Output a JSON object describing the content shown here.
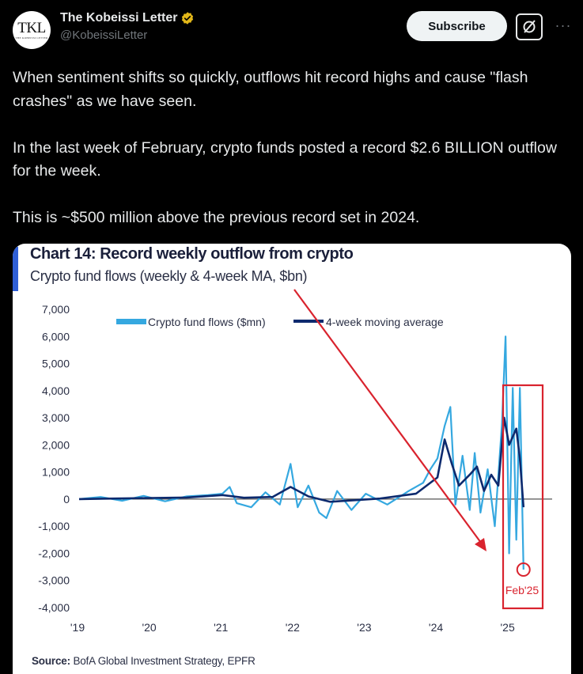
{
  "account": {
    "display_name": "The Kobeissi Letter",
    "handle": "@KobeissiLetter",
    "avatar_text": "TKL",
    "avatar_subtext": "THE KOBEISSI LETTER",
    "verified_color": "#e2b719"
  },
  "actions": {
    "subscribe_label": "Subscribe",
    "more_label": "···"
  },
  "tweet": {
    "paragraphs": [
      "When sentiment shifts so quickly, outflows hit record highs and cause \"flash crashes\" as we have seen.",
      "In the last week of February, crypto funds posted a record $2.6 BILLION outflow for the week.",
      "This is ~$500 million above the previous record set in 2024."
    ]
  },
  "chart_data": {
    "type": "line",
    "title": "Chart 14: Record weekly outflow from crypto",
    "subtitle": "Crypto fund flows (weekly & 4-week MA, $bn)",
    "source_label": "Source:",
    "source_text": "BofA Global Investment Strategy, EPFR",
    "ylim": [
      -4000,
      7000
    ],
    "y_ticks": [
      "7,000",
      "6,000",
      "5,000",
      "4,000",
      "3,000",
      "2,000",
      "1,000",
      "0",
      "-1,000",
      "-2,000",
      "-3,000",
      "-4,000"
    ],
    "x_ticks": [
      "'19",
      "'20",
      "'21",
      "'22",
      "'23",
      "'24",
      "'25"
    ],
    "legend": [
      "Crypto fund flows ($mn)",
      "4-week moving average"
    ],
    "annotation": "Feb'25",
    "colors": {
      "weekly": "#35a8e0",
      "ma": "#0d2a6e",
      "annotation": "#d9232e"
    },
    "series": [
      {
        "name": "Crypto fund flows ($mn)",
        "points": [
          [
            2019.0,
            0
          ],
          [
            2019.3,
            80
          ],
          [
            2019.6,
            -60
          ],
          [
            2019.9,
            120
          ],
          [
            2020.2,
            -80
          ],
          [
            2020.5,
            100
          ],
          [
            2020.8,
            150
          ],
          [
            2021.0,
            200
          ],
          [
            2021.1,
            450
          ],
          [
            2021.2,
            -150
          ],
          [
            2021.4,
            -300
          ],
          [
            2021.6,
            250
          ],
          [
            2021.8,
            -200
          ],
          [
            2021.95,
            1300
          ],
          [
            2022.05,
            -300
          ],
          [
            2022.2,
            500
          ],
          [
            2022.35,
            -500
          ],
          [
            2022.45,
            -700
          ],
          [
            2022.6,
            300
          ],
          [
            2022.8,
            -400
          ],
          [
            2023.0,
            200
          ],
          [
            2023.3,
            -200
          ],
          [
            2023.6,
            300
          ],
          [
            2023.8,
            600
          ],
          [
            2023.9,
            1100
          ],
          [
            2024.0,
            1500
          ],
          [
            2024.1,
            2700
          ],
          [
            2024.18,
            3400
          ],
          [
            2024.25,
            -200
          ],
          [
            2024.35,
            1600
          ],
          [
            2024.45,
            -400
          ],
          [
            2024.52,
            1700
          ],
          [
            2024.6,
            -500
          ],
          [
            2024.7,
            1100
          ],
          [
            2024.8,
            -1000
          ],
          [
            2024.9,
            2800
          ],
          [
            2024.95,
            6000
          ],
          [
            2025.0,
            -2000
          ],
          [
            2025.05,
            4100
          ],
          [
            2025.1,
            -1500
          ],
          [
            2025.15,
            4100
          ],
          [
            2025.2,
            -2600
          ]
        ]
      },
      {
        "name": "4-week moving average",
        "points": [
          [
            2019.0,
            0
          ],
          [
            2019.5,
            20
          ],
          [
            2020.0,
            40
          ],
          [
            2020.5,
            60
          ],
          [
            2021.0,
            150
          ],
          [
            2021.3,
            50
          ],
          [
            2021.7,
            80
          ],
          [
            2021.95,
            450
          ],
          [
            2022.2,
            100
          ],
          [
            2022.5,
            -100
          ],
          [
            2022.8,
            -50
          ],
          [
            2023.2,
            20
          ],
          [
            2023.7,
            200
          ],
          [
            2024.0,
            800
          ],
          [
            2024.1,
            2200
          ],
          [
            2024.2,
            1300
          ],
          [
            2024.3,
            500
          ],
          [
            2024.45,
            900
          ],
          [
            2024.55,
            1200
          ],
          [
            2024.65,
            300
          ],
          [
            2024.75,
            900
          ],
          [
            2024.85,
            500
          ],
          [
            2024.93,
            3000
          ],
          [
            2025.0,
            2000
          ],
          [
            2025.1,
            2600
          ],
          [
            2025.15,
            1500
          ],
          [
            2025.2,
            -300
          ]
        ]
      }
    ]
  }
}
